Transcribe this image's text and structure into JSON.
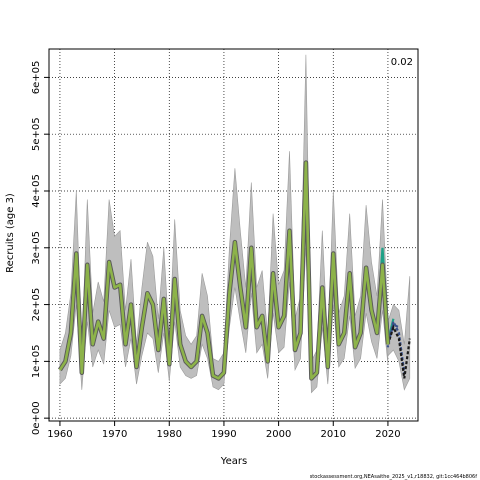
{
  "chart_data": {
    "type": "line",
    "xlabel": "Years",
    "ylabel": "Recruits (age 3)",
    "xlim": [
      1958,
      2025.5
    ],
    "ylim": [
      -5000,
      650000
    ],
    "x_ticks": [
      1960,
      1970,
      1980,
      1990,
      2000,
      2010,
      2020
    ],
    "x_tick_labels": [
      "1960",
      "1970",
      "1980",
      "1990",
      "2000",
      "2010",
      "2020"
    ],
    "y_ticks": [
      0,
      100000,
      200000,
      300000,
      400000,
      500000,
      600000
    ],
    "y_tick_labels": [
      "0e+00",
      "1e+05",
      "2e+05",
      "3e+05",
      "4e+05",
      "5e+05",
      "6e+05"
    ],
    "grid": true,
    "annotation": "0.02",
    "footnote": "stockassessment.org,NEAsaithe_2025_v1,r18832, git:1cc464b806f",
    "colors": {
      "band": "#bebebe",
      "band_edge": "#9a9a9a",
      "estimate_outline": "#5a5a5a",
      "retro_teal": "#1fa187",
      "retro_blue": "#3b528b",
      "retro_dark": "#1a1a1a",
      "estimate": "#8db34a"
    },
    "estimate": {
      "years": [
        1960,
        1961,
        1962,
        1963,
        1964,
        1965,
        1966,
        1967,
        1968,
        1969,
        1970,
        1971,
        1972,
        1973,
        1974,
        1975,
        1976,
        1977,
        1978,
        1979,
        1980,
        1981,
        1982,
        1983,
        1984,
        1985,
        1986,
        1987,
        1988,
        1989,
        1990,
        1991,
        1992,
        1993,
        1994,
        1995,
        1996,
        1997,
        1998,
        1999,
        2000,
        2001,
        2002,
        2003,
        2004,
        2005,
        2006,
        2007,
        2008,
        2009,
        2010,
        2011,
        2012,
        2013,
        2014,
        2015,
        2016,
        2017,
        2018,
        2019,
        2020
      ],
      "values": [
        85000,
        100000,
        150000,
        290000,
        80000,
        270000,
        130000,
        170000,
        140000,
        275000,
        230000,
        235000,
        130000,
        200000,
        90000,
        160000,
        220000,
        200000,
        120000,
        210000,
        95000,
        245000,
        130000,
        100000,
        90000,
        100000,
        180000,
        150000,
        75000,
        70000,
        80000,
        220000,
        310000,
        230000,
        160000,
        300000,
        160000,
        180000,
        100000,
        255000,
        160000,
        180000,
        330000,
        120000,
        150000,
        450000,
        70000,
        80000,
        230000,
        90000,
        290000,
        130000,
        150000,
        255000,
        125000,
        150000,
        265000,
        190000,
        150000,
        270000,
        130000
      ],
      "lower": [
        60000,
        70000,
        110000,
        200000,
        50000,
        170000,
        90000,
        120000,
        95000,
        190000,
        160000,
        165000,
        90000,
        140000,
        60000,
        110000,
        150000,
        140000,
        80000,
        150000,
        65000,
        170000,
        90000,
        75000,
        70000,
        75000,
        130000,
        105000,
        55000,
        50000,
        60000,
        160000,
        230000,
        170000,
        115000,
        220000,
        115000,
        130000,
        70000,
        185000,
        115000,
        125000,
        240000,
        85000,
        105000,
        300000,
        45000,
        55000,
        160000,
        60000,
        200000,
        90000,
        105000,
        180000,
        88000,
        105000,
        185000,
        135000,
        105000,
        190000,
        95000
      ],
      "upper": [
        120000,
        150000,
        220000,
        400000,
        120000,
        385000,
        185000,
        240000,
        205000,
        385000,
        320000,
        330000,
        190000,
        280000,
        130000,
        230000,
        310000,
        285000,
        175000,
        300000,
        140000,
        350000,
        190000,
        145000,
        130000,
        145000,
        255000,
        215000,
        105000,
        100000,
        115000,
        300000,
        440000,
        330000,
        230000,
        415000,
        230000,
        260000,
        145000,
        360000,
        235000,
        260000,
        470000,
        175000,
        215000,
        640000,
        100000,
        120000,
        330000,
        130000,
        400000,
        185000,
        215000,
        360000,
        180000,
        215000,
        375000,
        275000,
        215000,
        385000,
        180000
      ]
    },
    "retro_peels": [
      {
        "years": [
          2016,
          2017,
          2018,
          2019,
          2020
        ],
        "values": [
          265000,
          195000,
          155000,
          300000,
          160000
        ]
      },
      {
        "years": [
          2017,
          2018,
          2019,
          2020,
          2021
        ],
        "values": [
          190000,
          150000,
          280000,
          135000,
          175000
        ]
      },
      {
        "years": [
          2018,
          2019,
          2020,
          2021,
          2022
        ],
        "values": [
          150000,
          265000,
          130000,
          165000,
          160000
        ]
      },
      {
        "years": [
          2019,
          2020,
          2021,
          2022,
          2023
        ],
        "values": [
          260000,
          125000,
          170000,
          150000,
          80000
        ]
      },
      {
        "years": [
          2020,
          2021,
          2022,
          2023,
          2024
        ],
        "values": [
          130000,
          160000,
          140000,
          70000,
          140000
        ]
      }
    ],
    "retro_band": {
      "years": [
        2020,
        2021,
        2022,
        2023,
        2024
      ],
      "lower": [
        110000,
        120000,
        100000,
        50000,
        70000
      ],
      "upper": [
        170000,
        200000,
        190000,
        130000,
        250000
      ]
    }
  }
}
